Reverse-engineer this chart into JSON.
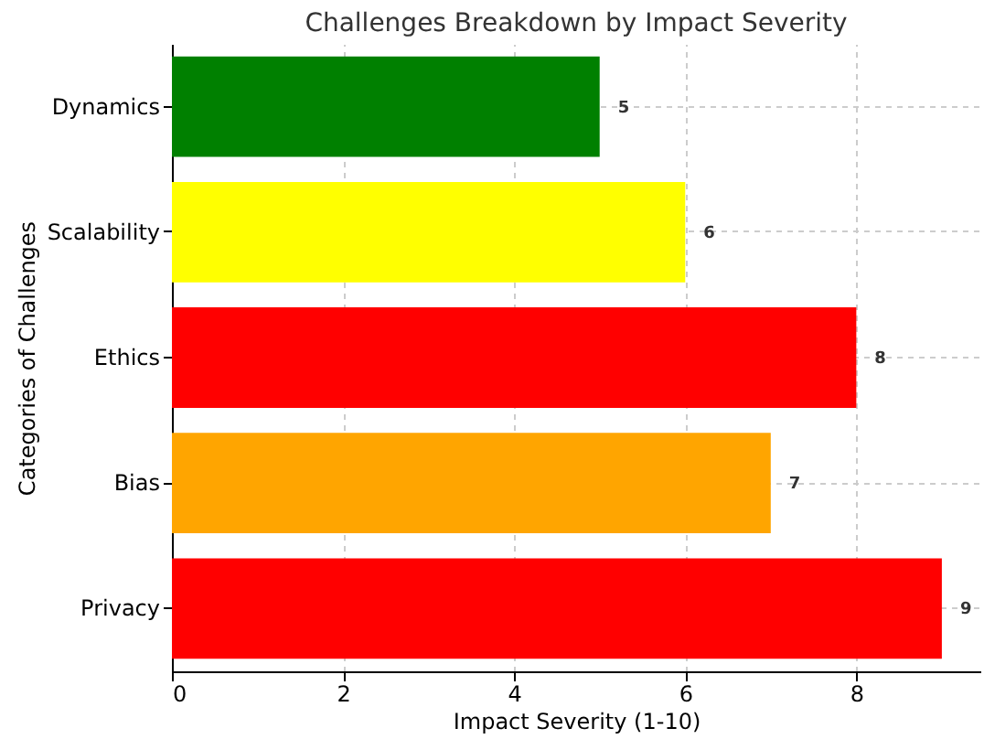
{
  "chart_data": {
    "type": "bar",
    "orientation": "horizontal",
    "title": "Challenges Breakdown by Impact Severity",
    "xlabel": "Impact Severity (1-10)",
    "ylabel": "Categories of Challenges",
    "categories": [
      "Dynamics",
      "Scalability",
      "Ethics",
      "Bias",
      "Privacy"
    ],
    "values": [
      5,
      6,
      8,
      7,
      9
    ],
    "colors": [
      "#008000",
      "#ffff00",
      "#ff0000",
      "#ffa500",
      "#ff0000"
    ],
    "xlim": [
      0,
      9.45
    ],
    "xticks": [
      0,
      2,
      4,
      6,
      8
    ],
    "grid": true,
    "data_labels": true
  }
}
